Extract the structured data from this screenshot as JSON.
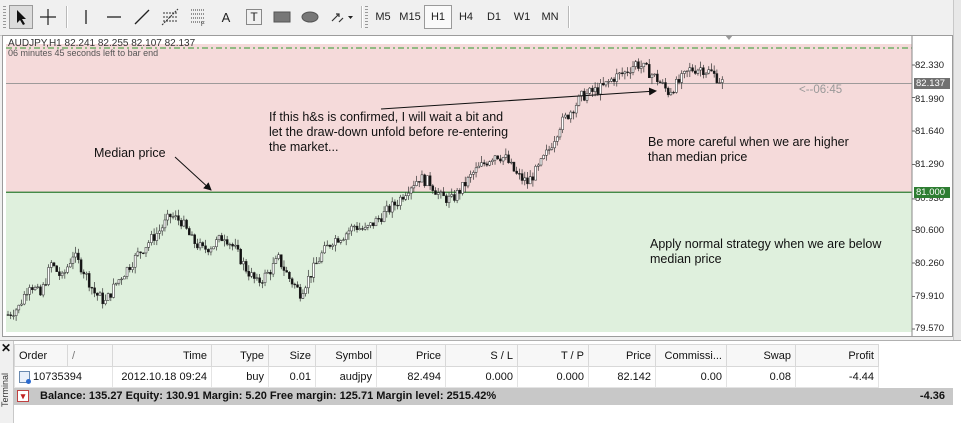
{
  "toolbar": {
    "timeframes": [
      "M5",
      "M15",
      "H1",
      "H4",
      "D1",
      "W1",
      "MN"
    ],
    "active_timeframe": "H1",
    "tools": [
      "cursor-tool",
      "crosshair-tool",
      "vertical-line-tool",
      "horizontal-line-tool",
      "trendline-tool",
      "fibonacci-tool",
      "fibonacci-fan-tool",
      "text-tool",
      "text-label-tool",
      "rectangle-tool",
      "ellipse-tool",
      "arrows-tool"
    ],
    "text_tool_glyph": "A",
    "label_tool_glyph": "T"
  },
  "chart": {
    "symbol_info": "AUDJPY,H1  82.241 82.255 82.107 82.137",
    "bar_end_info": "06 minutes 45 seconds left to bar end",
    "timer": "<--06:45",
    "current_price": "82.137",
    "median_price": "81.000",
    "y_axis_labels": [
      "82.330",
      "81.990",
      "81.640",
      "81.290",
      "80.930",
      "80.600",
      "80.260",
      "79.910",
      "79.570"
    ],
    "annotations": {
      "median_label": "Median price",
      "hs_note_line1": "If this h&s is confirmed, I will wait a bit and",
      "hs_note_line2": "let the draw-down unfold before re-entering",
      "hs_note_line3": "the market...",
      "careful_line1": "Be more careful when we are higher",
      "careful_line2": "than median price",
      "normal_line1": "Apply normal strategy when we are below",
      "normal_line2": "median price"
    },
    "zone_colors": {
      "above": "#f5dada",
      "below": "#dff0dd"
    }
  },
  "chart_data": {
    "type": "candlestick",
    "symbol": "AUDJPY",
    "timeframe": "H1",
    "ylim": [
      79.5,
      82.5
    ],
    "median": 81.0,
    "last": 82.137,
    "close_path": [
      [
        0,
        79.72
      ],
      [
        4,
        79.8
      ],
      [
        8,
        80.05
      ],
      [
        12,
        79.92
      ],
      [
        16,
        80.25
      ],
      [
        20,
        80.1
      ],
      [
        24,
        80.35
      ],
      [
        28,
        80.18
      ],
      [
        32,
        79.95
      ],
      [
        36,
        79.85
      ],
      [
        40,
        80.05
      ],
      [
        44,
        80.2
      ],
      [
        48,
        80.35
      ],
      [
        52,
        80.48
      ],
      [
        56,
        80.6
      ],
      [
        60,
        80.75
      ],
      [
        64,
        80.7
      ],
      [
        68,
        80.5
      ],
      [
        72,
        80.4
      ],
      [
        76,
        80.45
      ],
      [
        80,
        80.55
      ],
      [
        84,
        80.4
      ],
      [
        88,
        80.2
      ],
      [
        92,
        80.05
      ],
      [
        96,
        80.15
      ],
      [
        100,
        80.3
      ],
      [
        104,
        80.1
      ],
      [
        108,
        79.95
      ],
      [
        112,
        80.15
      ],
      [
        116,
        80.35
      ],
      [
        120,
        80.5
      ],
      [
        124,
        80.55
      ],
      [
        128,
        80.65
      ],
      [
        132,
        80.6
      ],
      [
        136,
        80.7
      ],
      [
        140,
        80.8
      ],
      [
        144,
        80.9
      ],
      [
        148,
        81.05
      ],
      [
        152,
        81.15
      ],
      [
        156,
        81.1
      ],
      [
        160,
        80.95
      ],
      [
        164,
        80.92
      ],
      [
        168,
        81.05
      ],
      [
        172,
        81.2
      ],
      [
        176,
        81.3
      ],
      [
        180,
        81.4
      ],
      [
        184,
        81.35
      ],
      [
        188,
        81.18
      ],
      [
        192,
        81.1
      ],
      [
        196,
        81.25
      ],
      [
        200,
        81.45
      ],
      [
        204,
        81.7
      ],
      [
        208,
        81.85
      ],
      [
        212,
        82.0
      ],
      [
        216,
        82.05
      ],
      [
        220,
        82.1
      ],
      [
        224,
        82.2
      ],
      [
        228,
        82.25
      ],
      [
        232,
        82.35
      ],
      [
        236,
        82.28
      ],
      [
        240,
        82.18
      ],
      [
        244,
        82.05
      ],
      [
        248,
        82.15
      ],
      [
        252,
        82.28
      ],
      [
        256,
        82.3
      ],
      [
        260,
        82.25
      ],
      [
        264,
        82.15
      ]
    ]
  },
  "terminal": {
    "tab_label": "Terminal",
    "columns": [
      "Order",
      "/",
      "Time",
      "Type",
      "Size",
      "Symbol",
      "Price",
      "S / L",
      "T / P",
      "Price",
      "Commissi...",
      "Swap",
      "Profit"
    ],
    "rows": [
      {
        "order": "10735394",
        "time": "2012.10.18 09:24",
        "type": "buy",
        "size": "0.01",
        "symbol": "audjpy",
        "price": "82.494",
        "sl": "0.000",
        "tp": "0.000",
        "cur_price": "82.142",
        "commission": "0.00",
        "swap": "0.08",
        "profit": "-4.44"
      }
    ],
    "balance_line": "Balance: 135.27  Equity: 130.91  Margin: 5.20  Free margin: 125.71  Margin level: 2515.42%",
    "total_profit": "-4.36"
  }
}
